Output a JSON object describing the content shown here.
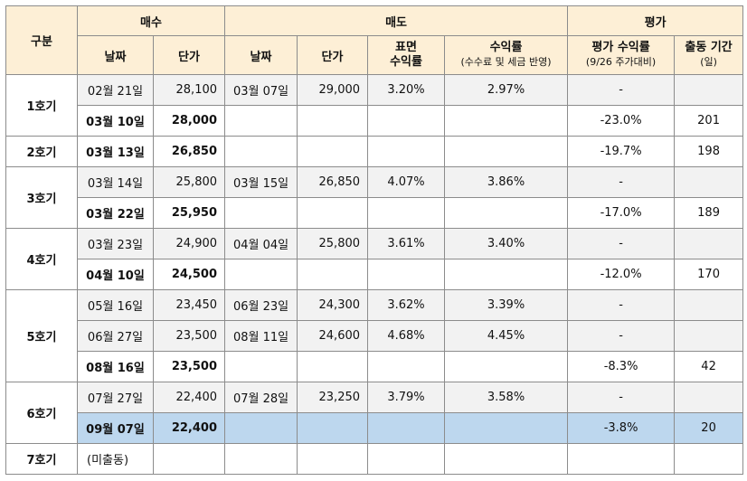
{
  "header": {
    "gubun": "구분",
    "buy": "매수",
    "sell": "매도",
    "eval": "평가",
    "buy_date": "날짜",
    "buy_price": "단가",
    "sell_date": "날짜",
    "sell_price": "단가",
    "surface_return_l1": "표면",
    "surface_return_l2": "수익률",
    "net_return_l1": "수익률",
    "net_return_l2": "(수수료 및 세금 반영)",
    "eval_return_l1": "평가 수익률",
    "eval_return_l2": "(9/26 주가대비)",
    "period_l1": "출동 기간",
    "period_l2": "(일)"
  },
  "groups": [
    {
      "label": "1호기",
      "rows": [
        {
          "buy_date": "02월 21일",
          "buy_price": "28,100",
          "sell_date": "03월 07일",
          "sell_price": "29,000",
          "surface": "3.20%",
          "net": "2.97%",
          "eval": "-",
          "period": "",
          "style": "g"
        },
        {
          "buy_date": "03월 10일",
          "buy_price": "28,000",
          "sell_date": "",
          "sell_price": "",
          "surface": "",
          "net": "",
          "eval": "-23.0%",
          "period": "201",
          "style": "b"
        }
      ]
    },
    {
      "label": "2호기",
      "rows": [
        {
          "buy_date": "03월 13일",
          "buy_price": "26,850",
          "sell_date": "",
          "sell_price": "",
          "surface": "",
          "net": "",
          "eval": "-19.7%",
          "period": "198",
          "style": "b"
        }
      ]
    },
    {
      "label": "3호기",
      "rows": [
        {
          "buy_date": "03월 14일",
          "buy_price": "25,800",
          "sell_date": "03월 15일",
          "sell_price": "26,850",
          "surface": "4.07%",
          "net": "3.86%",
          "eval": "-",
          "period": "",
          "style": "g"
        },
        {
          "buy_date": "03월 22일",
          "buy_price": "25,950",
          "sell_date": "",
          "sell_price": "",
          "surface": "",
          "net": "",
          "eval": "-17.0%",
          "period": "189",
          "style": "b"
        }
      ]
    },
    {
      "label": "4호기",
      "rows": [
        {
          "buy_date": "03월 23일",
          "buy_price": "24,900",
          "sell_date": "04월 04일",
          "sell_price": "25,800",
          "surface": "3.61%",
          "net": "3.40%",
          "eval": "-",
          "period": "",
          "style": "g"
        },
        {
          "buy_date": "04월 10일",
          "buy_price": "24,500",
          "sell_date": "",
          "sell_price": "",
          "surface": "",
          "net": "",
          "eval": "-12.0%",
          "period": "170",
          "style": "b"
        }
      ]
    },
    {
      "label": "5호기",
      "rows": [
        {
          "buy_date": "05월 16일",
          "buy_price": "23,450",
          "sell_date": "06월 23일",
          "sell_price": "24,300",
          "surface": "3.62%",
          "net": "3.39%",
          "eval": "-",
          "period": "",
          "style": "g"
        },
        {
          "buy_date": "06월 27일",
          "buy_price": "23,500",
          "sell_date": "08월 11일",
          "sell_price": "24,600",
          "surface": "4.68%",
          "net": "4.45%",
          "eval": "-",
          "period": "",
          "style": "g"
        },
        {
          "buy_date": "08월 16일",
          "buy_price": "23,500",
          "sell_date": "",
          "sell_price": "",
          "surface": "",
          "net": "",
          "eval": "-8.3%",
          "period": "42",
          "style": "b"
        }
      ]
    },
    {
      "label": "6호기",
      "rows": [
        {
          "buy_date": "07월 27일",
          "buy_price": "22,400",
          "sell_date": "07월 28일",
          "sell_price": "23,250",
          "surface": "3.79%",
          "net": "3.58%",
          "eval": "-",
          "period": "",
          "style": "g"
        },
        {
          "buy_date": "09월 07일",
          "buy_price": "22,400",
          "sell_date": "",
          "sell_price": "",
          "surface": "",
          "net": "",
          "eval": "-3.8%",
          "period": "20",
          "style": "hl"
        }
      ]
    },
    {
      "label": "7호기",
      "rows": [
        {
          "buy_date": "(미출동)",
          "buy_price": "",
          "sell_date": "",
          "sell_price": "",
          "surface": "",
          "net": "",
          "eval": "",
          "period": "",
          "style": "plain"
        }
      ]
    }
  ],
  "colors": {
    "header_bg": "#fdefd6",
    "sold_row_bg": "#f2f2f2",
    "highlight_bg": "#bdd7ee",
    "border": "#8c8c8c"
  }
}
